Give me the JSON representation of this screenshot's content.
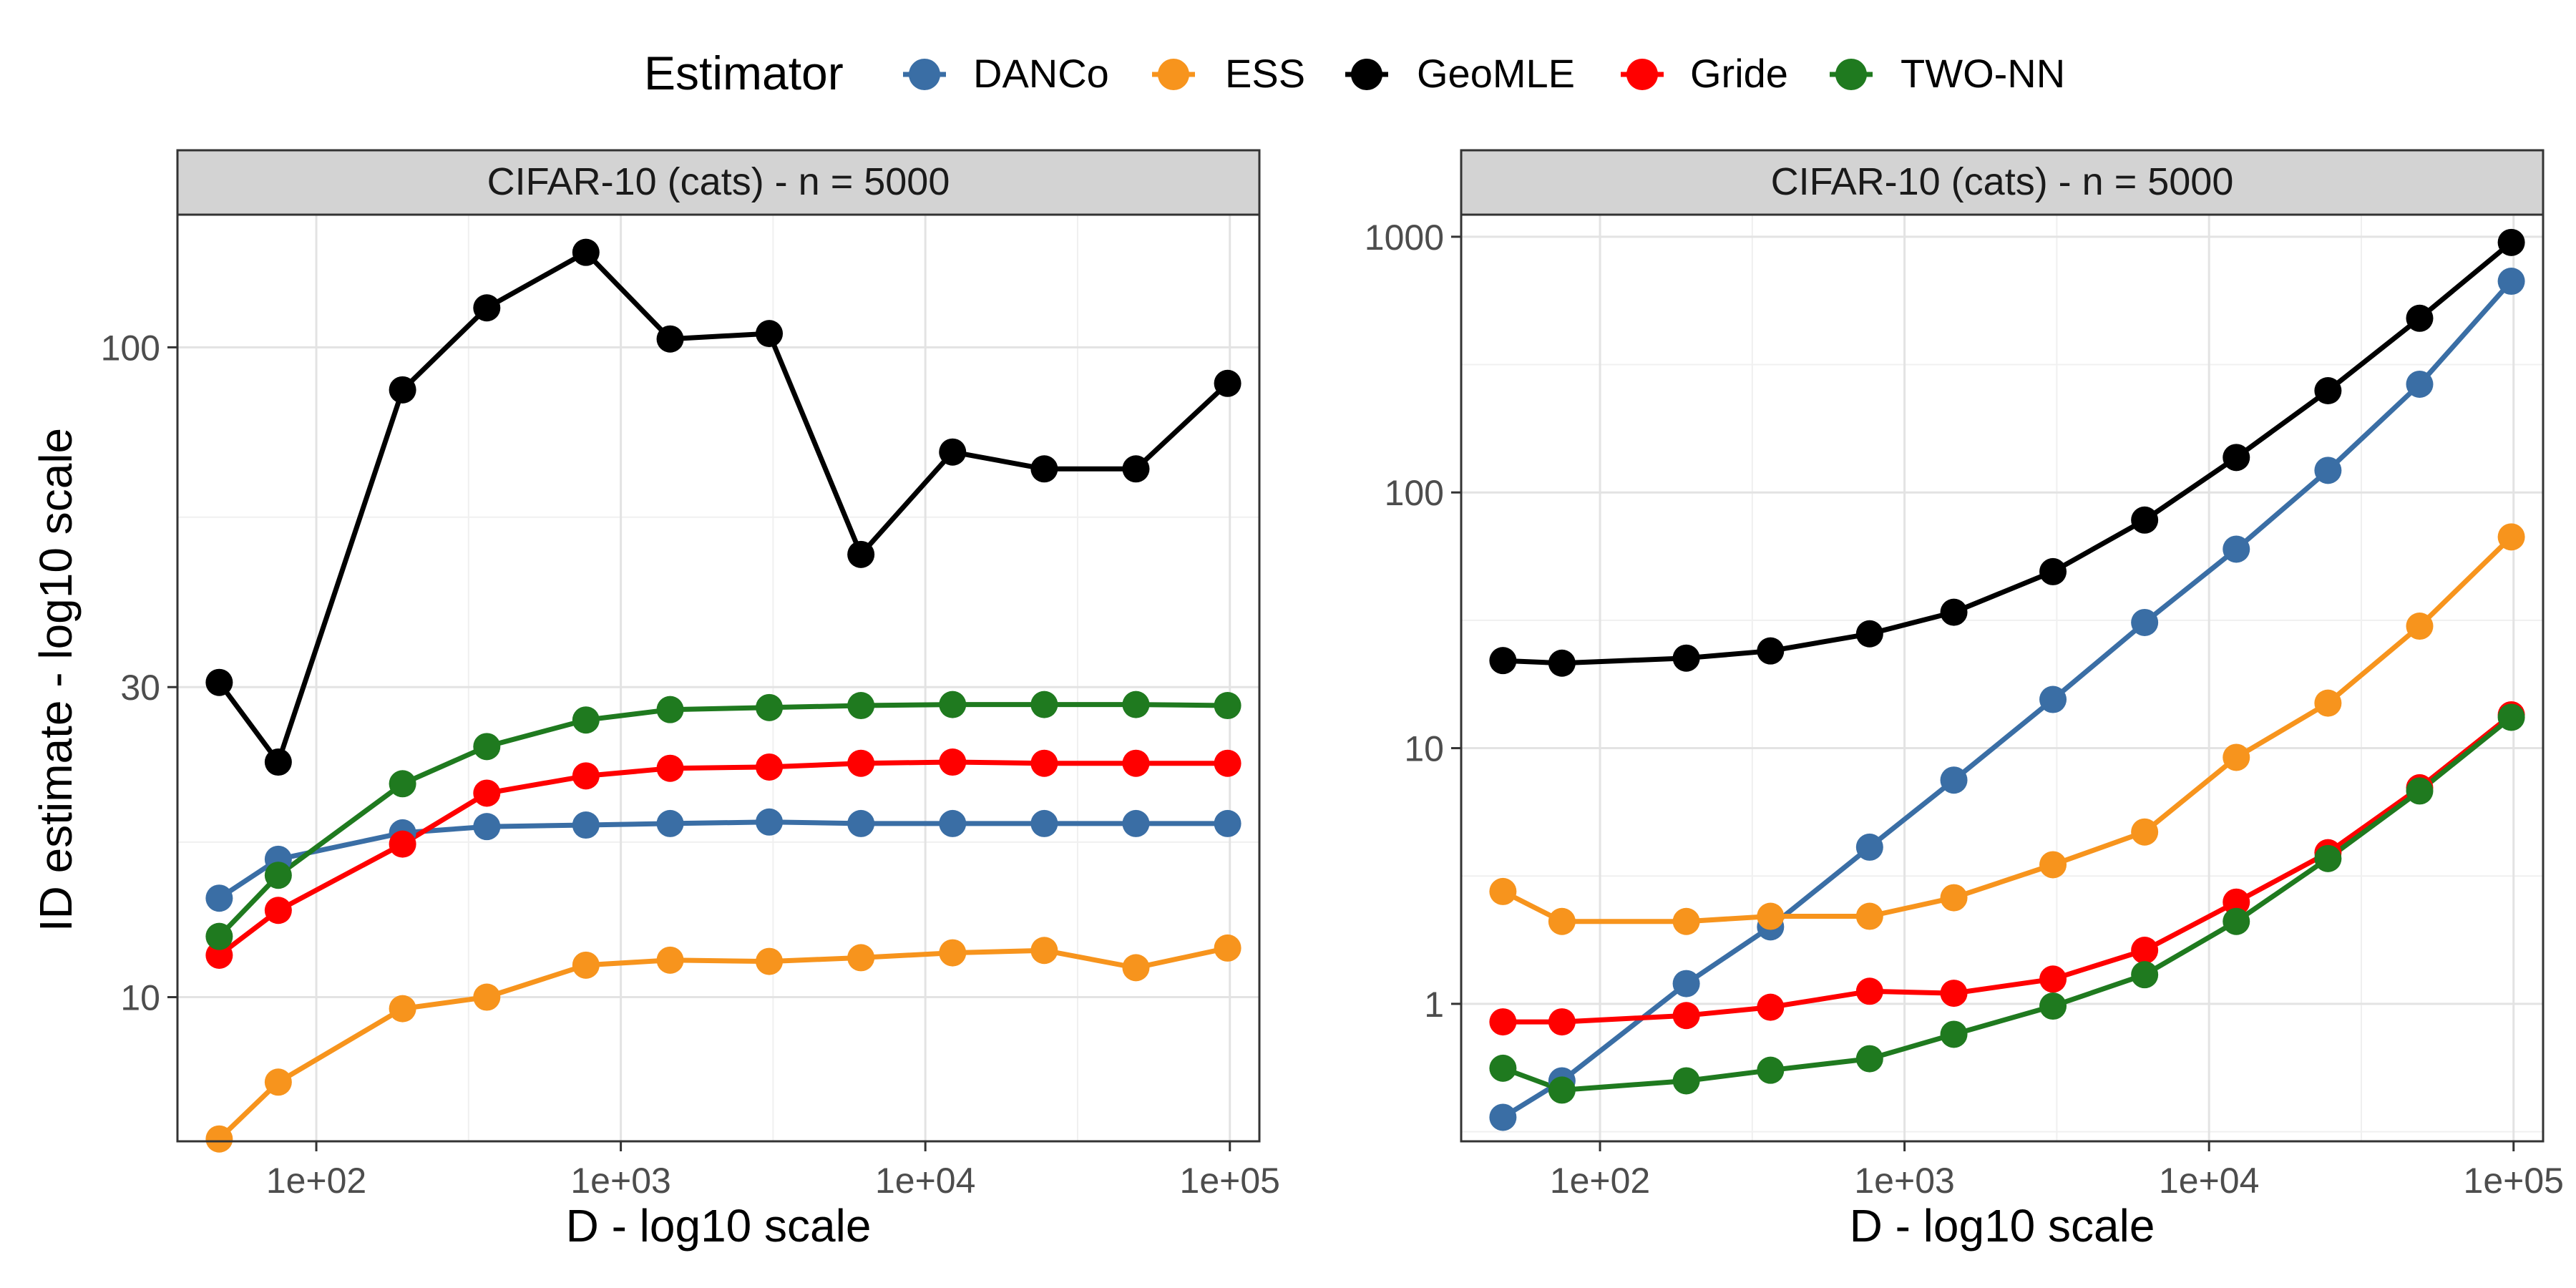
{
  "legend": {
    "title": "Estimator",
    "entries": [
      {
        "name": "DANCo",
        "color": "#3A6EA5"
      },
      {
        "name": "ESS",
        "color": "#F7941D"
      },
      {
        "name": "GeoMLE",
        "color": "#000000"
      },
      {
        "name": "Gride",
        "color": "#FF0000"
      },
      {
        "name": "TWO-NN",
        "color": "#1F7A1F"
      }
    ]
  },
  "ylabel": "ID estimate - log10 scale",
  "chart_data": [
    {
      "type": "line",
      "title": "CIFAR-10 (cats) - n = 5000",
      "xlabel": "D - log10 scale",
      "ylabel": "ID estimate - log10 scale",
      "xscale": "log10",
      "yscale": "log10",
      "xlim": [
        35,
        125000
      ],
      "ylim": [
        6.0,
        160
      ],
      "xticks": [
        100,
        1000,
        10000,
        100000
      ],
      "xtick_labels": [
        "1e+02",
        "1e+03",
        "1e+04",
        "1e+05"
      ],
      "yticks": [
        10,
        30,
        100
      ],
      "ytick_labels": [
        "10",
        "30",
        "100"
      ],
      "grid": true,
      "x": [
        48,
        75,
        192,
        363,
        768,
        1452,
        3072,
        6144,
        12288,
        24576,
        49152,
        98304
      ],
      "series": [
        {
          "name": "DANCo",
          "color": "#3A6EA5",
          "values": [
            14.2,
            16.3,
            17.9,
            18.3,
            18.4,
            18.5,
            18.6,
            18.5,
            18.5,
            18.5,
            18.5,
            18.5
          ]
        },
        {
          "name": "ESS",
          "color": "#F7941D",
          "values": [
            6.05,
            7.4,
            9.6,
            10.0,
            11.2,
            11.4,
            11.35,
            11.5,
            11.7,
            11.8,
            11.1,
            11.9
          ]
        },
        {
          "name": "GeoMLE",
          "color": "#000000",
          "values": [
            30.5,
            23.0,
            86,
            115,
            140,
            103,
            105,
            48,
            69,
            65,
            65,
            88
          ]
        },
        {
          "name": "Gride",
          "color": "#FF0000",
          "values": [
            11.6,
            13.6,
            17.2,
            20.6,
            21.9,
            22.5,
            22.6,
            22.9,
            23.0,
            22.9,
            22.9,
            22.9
          ]
        },
        {
          "name": "TWO-NN",
          "color": "#1F7A1F",
          "values": [
            12.4,
            15.4,
            21.3,
            24.3,
            26.7,
            27.7,
            27.9,
            28.1,
            28.2,
            28.2,
            28.2,
            28.1
          ]
        }
      ]
    },
    {
      "type": "line",
      "title": "CIFAR-10 (cats) - n = 5000",
      "xlabel": "D - log10 scale",
      "ylabel": "",
      "xscale": "log10",
      "yscale": "log10",
      "xlim": [
        35,
        125000
      ],
      "ylim": [
        0.29,
        1220
      ],
      "xticks": [
        100,
        1000,
        10000,
        100000
      ],
      "xtick_labels": [
        "1e+02",
        "1e+03",
        "1e+04",
        "1e+05"
      ],
      "yticks": [
        1,
        10,
        100,
        1000
      ],
      "ytick_labels": [
        "1",
        "10",
        "100",
        "1000"
      ],
      "grid": true,
      "x": [
        48,
        75,
        192,
        363,
        768,
        1452,
        3072,
        6144,
        12288,
        24576,
        49152,
        98304
      ],
      "series": [
        {
          "name": "DANCo",
          "color": "#3A6EA5",
          "values": [
            0.36,
            0.5,
            1.2,
            2.0,
            4.1,
            7.5,
            15.5,
            31,
            60,
            122,
            265,
            670
          ]
        },
        {
          "name": "ESS",
          "color": "#F7941D",
          "values": [
            2.75,
            2.1,
            2.1,
            2.2,
            2.2,
            2.6,
            3.5,
            4.7,
            9.2,
            15,
            30,
            67
          ]
        },
        {
          "name": "GeoMLE",
          "color": "#000000",
          "values": [
            22,
            21.5,
            22.5,
            24,
            28,
            34,
            49,
            78,
            137,
            250,
            480,
            950
          ]
        },
        {
          "name": "Gride",
          "color": "#FF0000",
          "values": [
            0.85,
            0.85,
            0.9,
            0.97,
            1.12,
            1.1,
            1.25,
            1.62,
            2.5,
            3.9,
            7.0,
            13.5
          ]
        },
        {
          "name": "TWO-NN",
          "color": "#1F7A1F",
          "values": [
            0.56,
            0.46,
            0.5,
            0.55,
            0.61,
            0.76,
            0.98,
            1.3,
            2.1,
            3.7,
            6.8,
            13.2
          ]
        }
      ]
    }
  ]
}
